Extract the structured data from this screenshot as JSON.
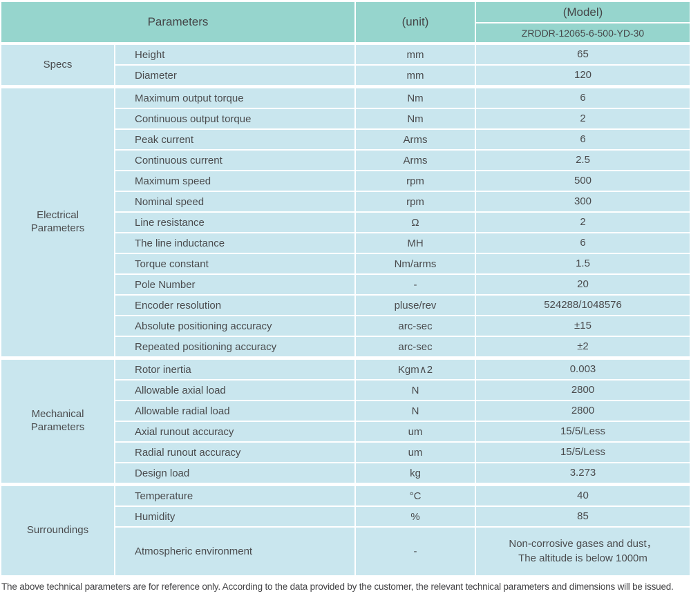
{
  "header": {
    "parameters": "Parameters",
    "unit": "(unit)",
    "model_label": "(Model)",
    "model_number": "ZRDDR-12065-6-500-YD-30"
  },
  "colors": {
    "header_bg": "#96d5cd",
    "cell_bg": "#c9e6ee",
    "divider": "#ffffff",
    "text": "#4a4b4d"
  },
  "table": {
    "sections": [
      {
        "label": "Specs",
        "rows": [
          {
            "param": "Height",
            "unit": "mm",
            "value": "65"
          },
          {
            "param": "Diameter",
            "unit": "mm",
            "value": "120"
          }
        ]
      },
      {
        "label": "Electrical Parameters",
        "rows": [
          {
            "param": "Maximum output torque",
            "unit": "Nm",
            "value": "6"
          },
          {
            "param": "Continuous output torque",
            "unit": "Nm",
            "value": "2"
          },
          {
            "param": "Peak current",
            "unit": "Arms",
            "value": "6"
          },
          {
            "param": "Continuous current",
            "unit": "Arms",
            "value": "2.5"
          },
          {
            "param": "Maximum speed",
            "unit": "rpm",
            "value": "500"
          },
          {
            "param": "Nominal speed",
            "unit": "rpm",
            "value": "300"
          },
          {
            "param": "Line resistance",
            "unit": "Ω",
            "value": "2"
          },
          {
            "param": "The line inductance",
            "unit": "MH",
            "value": "6"
          },
          {
            "param": "Torque constant",
            "unit": "Nm/arms",
            "value": "1.5"
          },
          {
            "param": "Pole Number",
            "unit": "-",
            "value": "20"
          },
          {
            "param": "Encoder resolution",
            "unit": "pluse/rev",
            "value": "524288/1048576"
          },
          {
            "param": "Absolute positioning accuracy",
            "unit": "arc-sec",
            "value": "±15"
          },
          {
            "param": "Repeated positioning accuracy",
            "unit": "arc-sec",
            "value": "±2"
          }
        ]
      },
      {
        "label": "Mechanical Parameters",
        "rows": [
          {
            "param": "Rotor inertia",
            "unit": "Kgm∧2",
            "value": "0.003"
          },
          {
            "param": "Allowable axial load",
            "unit": "N",
            "value": "2800"
          },
          {
            "param": "Allowable radial load",
            "unit": "N",
            "value": "2800"
          },
          {
            "param": "Axial runout accuracy",
            "unit": "um",
            "value": "15/5/Less"
          },
          {
            "param": "Radial runout accuracy",
            "unit": "um",
            "value": "15/5/Less"
          },
          {
            "param": "Design load",
            "unit": "kg",
            "value": "3.273"
          }
        ]
      },
      {
        "label": "Surroundings",
        "rows": [
          {
            "param": "Temperature",
            "unit": "°C",
            "value": "40"
          },
          {
            "param": "Humidity",
            "unit": "%",
            "value": "85"
          },
          {
            "param": "Atmospheric environment",
            "unit": "-",
            "value": "Non-corrosive gases and dust，\nThe altitude is below 1000m",
            "tall": true
          }
        ]
      }
    ]
  },
  "footer": {
    "note": "The above technical parameters are for reference only. According to the data provided by the customer, the relevant technical parameters and dimensions will be issued."
  }
}
